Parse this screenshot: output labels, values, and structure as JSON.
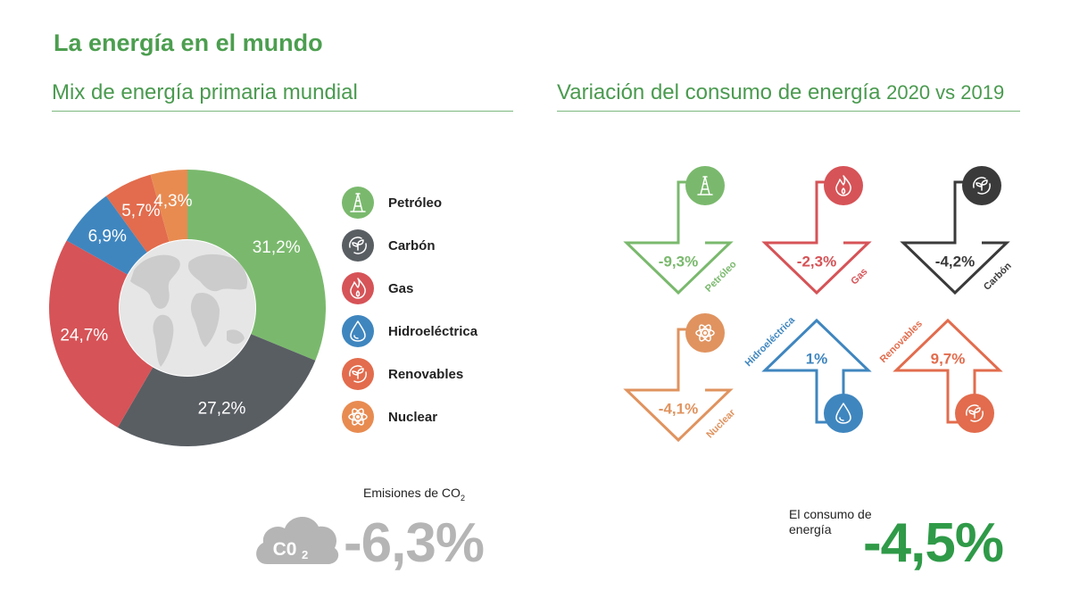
{
  "title": "La energía en el mundo",
  "mix_title": "Mix de energía primaria mundial",
  "variation_title": {
    "text": "Variación del consumo de energía",
    "years": "2020 vs 2019"
  },
  "chart_data": [
    {
      "type": "pie",
      "title": "Mix de energía primaria mundial",
      "donut": true,
      "start": "top",
      "direction": "clockwise",
      "slices": [
        {
          "name": "Petróleo",
          "value": 31.2,
          "label": "31,2%",
          "color": "#7ab96d",
          "icon": "oil-derrick-icon"
        },
        {
          "name": "Carbón",
          "value": 27.2,
          "label": "27,2%",
          "color": "#595e63",
          "icon": "carbon-leaf-icon"
        },
        {
          "name": "Gas",
          "value": 24.7,
          "label": "24,7%",
          "color": "#d65357",
          "icon": "flame-icon"
        },
        {
          "name": "Hidroeléctrica",
          "value": 6.9,
          "label": "6,9%",
          "color": "#3f86bf",
          "icon": "water-drop-icon"
        },
        {
          "name": "Renovables",
          "value": 5.7,
          "label": "5,7%",
          "color": "#e26c4d",
          "icon": "renewable-leaf-icon"
        },
        {
          "name": "Nuclear",
          "value": 4.3,
          "label": "4,3%",
          "color": "#e88b51",
          "icon": "atom-icon"
        }
      ],
      "legend_position": "right"
    },
    {
      "type": "bar",
      "title": "Variación del consumo de energía 2020 vs 2019",
      "unit": "%",
      "categories": [
        "Petróleo",
        "Gas",
        "Carbón",
        "Nuclear",
        "Hidroeléctrica",
        "Renovables"
      ],
      "values": [
        -9.3,
        -2.3,
        -4.2,
        -4.1,
        1,
        9.7
      ],
      "labels": [
        "-9,3%",
        "-2,3%",
        "-4,2%",
        "-4,1%",
        "1%",
        "9,7%"
      ],
      "colors": [
        "#7ab96d",
        "#d65357",
        "#3a3a3a",
        "#e0935f",
        "#3f86bf",
        "#e26c4d"
      ]
    }
  ],
  "co2": {
    "caption": "Emisiones de CO",
    "caption_sub": "2",
    "cloud_text": "C0",
    "cloud_sub": "2",
    "value": "-6,3%"
  },
  "consumo": {
    "caption": "El consumo de energía",
    "value": "-4,5%"
  }
}
